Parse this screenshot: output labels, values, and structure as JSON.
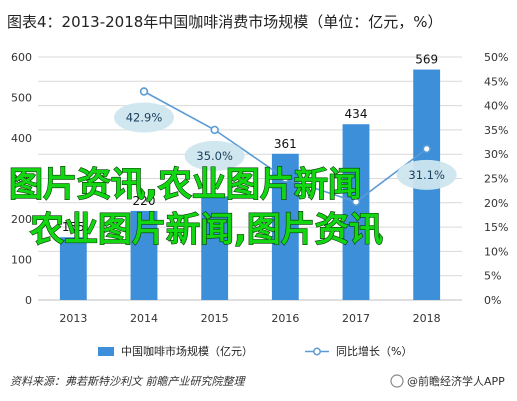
{
  "chart_data": {
    "type": "bar",
    "title": "图表4：2013-2018年中国咖啡消费市场规模（单位：亿元，%）",
    "categories": [
      "2013",
      "2014",
      "2015",
      "2016",
      "2017",
      "2018"
    ],
    "series": [
      {
        "name": "中国咖啡市场规模（亿元）",
        "type": "bar",
        "axis": "left",
        "values": [
          155,
          220,
          256,
          361,
          434,
          569
        ],
        "labels": [
          "155",
          "220",
          "",
          "361",
          "434",
          "569"
        ]
      },
      {
        "name": "同比增长（%）",
        "type": "line",
        "axis": "right",
        "values": [
          null,
          42.9,
          35.0,
          25.0,
          20.2,
          31.1
        ],
        "labels": [
          "",
          "42.9%",
          "35.0%",
          "",
          "",
          "31.1%"
        ]
      }
    ],
    "y_left": {
      "ylim": [
        0,
        600
      ],
      "ticks": [
        "0",
        "100",
        "200",
        "300",
        "400",
        "500",
        "600"
      ]
    },
    "y_right": {
      "ylim": [
        0,
        50
      ],
      "ticks": [
        "0%",
        "5%",
        "10%",
        "15%",
        "20%",
        "25%",
        "30%",
        "35%",
        "40%",
        "45%",
        "50%"
      ]
    },
    "grid": true,
    "legend": "bottom",
    "colors": {
      "bar": "#3d8fd9",
      "line": "#5b9bd5",
      "bubble": "#cde6ef"
    }
  },
  "source_text": "资料来源：弗若斯特沙利文 前瞻产业研究院整理",
  "brand_text": "@前瞻经济学人APP",
  "overlay_text": {
    "line1": "图片资讯,农业图片新闻",
    "line2": "农业图片新闻,图片资讯"
  }
}
